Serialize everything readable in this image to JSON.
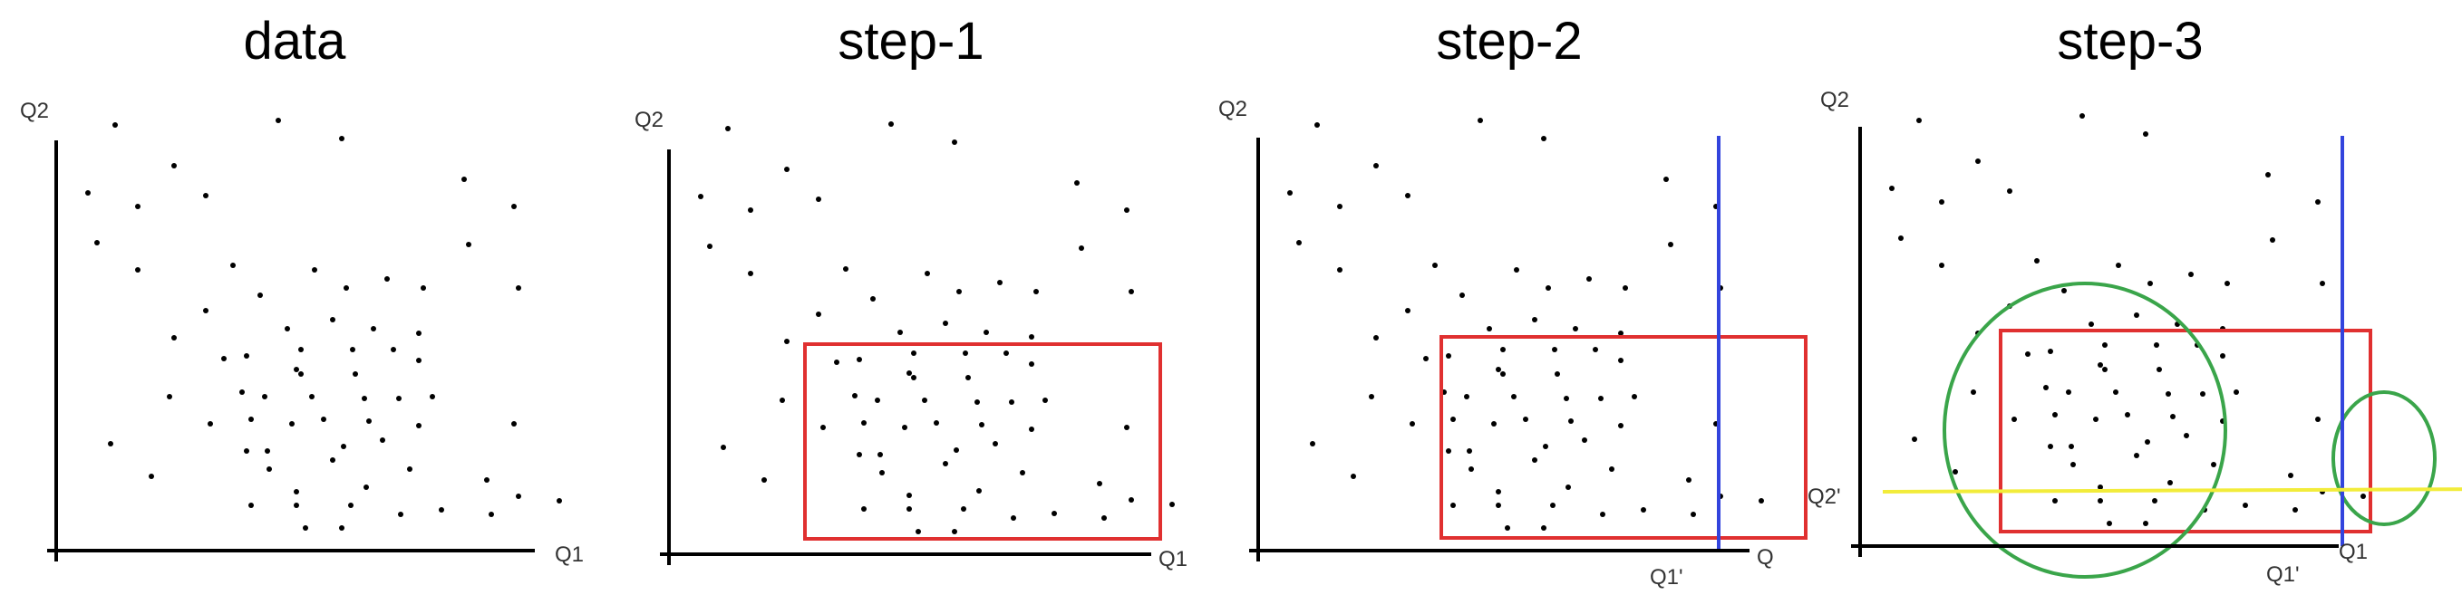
{
  "panels": [
    {
      "id": "data",
      "title": "data",
      "axes": {
        "y_label": "Q2",
        "x_label": "Q1"
      },
      "markers": {
        "q1_prime": "",
        "q2_prime": ""
      },
      "show": {
        "rect": false,
        "vline": false,
        "hline": false,
        "circles": false
      }
    },
    {
      "id": "step1",
      "title": "step-1",
      "axes": {
        "y_label": "Q2",
        "x_label": "Q1"
      },
      "markers": {
        "q1_prime": "",
        "q2_prime": ""
      },
      "show": {
        "rect": true,
        "vline": false,
        "hline": false,
        "circles": false
      }
    },
    {
      "id": "step2",
      "title": "step-2",
      "axes": {
        "y_label": "Q2",
        "x_label": "Q"
      },
      "markers": {
        "q1_prime": "Q1'",
        "q2_prime": ""
      },
      "show": {
        "rect": true,
        "vline": true,
        "hline": false,
        "circles": false
      }
    },
    {
      "id": "step3",
      "title": "step-3",
      "axes": {
        "y_label": "Q2",
        "x_label": "Q1"
      },
      "markers": {
        "q1_prime": "Q1'",
        "q2_prime": "Q2'"
      },
      "show": {
        "rect": true,
        "vline": true,
        "hline": true,
        "circles": true
      }
    }
  ],
  "colors": {
    "axis": "#000000",
    "point": "#000000",
    "rect": "#e03030",
    "vline": "#3344dd",
    "hline": "#f2ec3a",
    "circle": "#3aa54a",
    "label": "#333333"
  }
}
